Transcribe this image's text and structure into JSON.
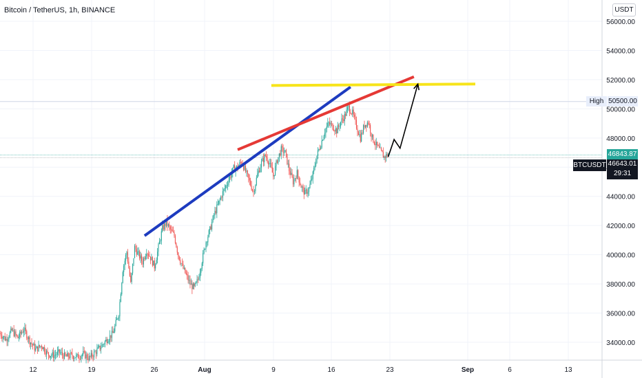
{
  "header": {
    "title": "Bitcoin / TetherUS, 1h, BINANCE",
    "unit": "USDT"
  },
  "chart_data": {
    "type": "candlestick",
    "symbol": "BTCUSDT",
    "ylim": [
      33000,
      57000
    ],
    "yticks": [
      34000,
      36000,
      38000,
      40000,
      42000,
      44000,
      46000,
      48000,
      50000,
      52000,
      54000,
      56000
    ],
    "xticks": [
      "12",
      "19",
      "26",
      "Aug",
      "9",
      "16",
      "23",
      "Sep",
      "6",
      "13"
    ],
    "high_label": "High",
    "high_value": 50500.0,
    "last_price": 46643.01,
    "countdown": "29:31",
    "prev_close": 46843.87,
    "price_path": [
      [
        0,
        34600
      ],
      [
        6,
        34200
      ],
      [
        12,
        34800
      ],
      [
        18,
        34300
      ],
      [
        24,
        34900
      ],
      [
        30,
        34100
      ],
      [
        36,
        33500
      ],
      [
        42,
        33800
      ],
      [
        48,
        33200
      ],
      [
        54,
        33100
      ],
      [
        60,
        33300
      ],
      [
        66,
        33000
      ],
      [
        72,
        33100
      ],
      [
        78,
        33000
      ],
      [
        84,
        33200
      ],
      [
        90,
        32900
      ],
      [
        96,
        33300
      ],
      [
        102,
        33700
      ],
      [
        108,
        34200
      ],
      [
        114,
        34600
      ],
      [
        120,
        36000
      ],
      [
        124,
        39000
      ],
      [
        128,
        40200
      ],
      [
        132,
        38000
      ],
      [
        136,
        40500
      ],
      [
        140,
        40000
      ],
      [
        144,
        39500
      ],
      [
        148,
        40300
      ],
      [
        152,
        39800
      ],
      [
        156,
        39200
      ],
      [
        160,
        40500
      ],
      [
        164,
        41800
      ],
      [
        168,
        42200
      ],
      [
        172,
        41700
      ],
      [
        176,
        41300
      ],
      [
        180,
        40000
      ],
      [
        184,
        39200
      ],
      [
        188,
        38600
      ],
      [
        192,
        38000
      ],
      [
        196,
        37700
      ],
      [
        200,
        38300
      ],
      [
        204,
        39600
      ],
      [
        208,
        40900
      ],
      [
        212,
        41700
      ],
      [
        216,
        42700
      ],
      [
        220,
        43400
      ],
      [
        224,
        44100
      ],
      [
        228,
        44700
      ],
      [
        232,
        45300
      ],
      [
        236,
        45900
      ],
      [
        240,
        46000
      ],
      [
        244,
        46400
      ],
      [
        248,
        45700
      ],
      [
        252,
        45000
      ],
      [
        256,
        44300
      ],
      [
        260,
        45500
      ],
      [
        264,
        46300
      ],
      [
        268,
        46800
      ],
      [
        272,
        46300
      ],
      [
        276,
        45400
      ],
      [
        280,
        46500
      ],
      [
        284,
        47200
      ],
      [
        288,
        47000
      ],
      [
        292,
        45800
      ],
      [
        296,
        45000
      ],
      [
        300,
        45600
      ],
      [
        304,
        44700
      ],
      [
        308,
        44200
      ],
      [
        312,
        44500
      ],
      [
        316,
        45500
      ],
      [
        320,
        46800
      ],
      [
        324,
        47600
      ],
      [
        328,
        48500
      ],
      [
        332,
        49000
      ],
      [
        336,
        48800
      ],
      [
        340,
        48500
      ],
      [
        344,
        49100
      ],
      [
        348,
        49500
      ],
      [
        352,
        50100
      ],
      [
        356,
        49700
      ],
      [
        360,
        48800
      ],
      [
        364,
        48000
      ],
      [
        368,
        48900
      ],
      [
        372,
        49100
      ],
      [
        376,
        48000
      ],
      [
        380,
        47500
      ],
      [
        384,
        47100
      ],
      [
        388,
        46700
      ],
      [
        392,
        46900
      ]
    ],
    "trendlines": [
      {
        "color": "#1d3bbf",
        "from": [
          146,
          41300
        ],
        "to": [
          354,
          51500
        ]
      },
      {
        "color": "#e53935",
        "from": [
          240,
          47200
        ],
        "to": [
          418,
          52200
        ]
      },
      {
        "color": "#f7e41a",
        "from": [
          274,
          51600
        ],
        "to": [
          480,
          51700
        ]
      }
    ],
    "projection": [
      [
        392,
        46700
      ],
      [
        398,
        47900
      ],
      [
        404,
        47300
      ],
      [
        422,
        51700
      ]
    ]
  }
}
